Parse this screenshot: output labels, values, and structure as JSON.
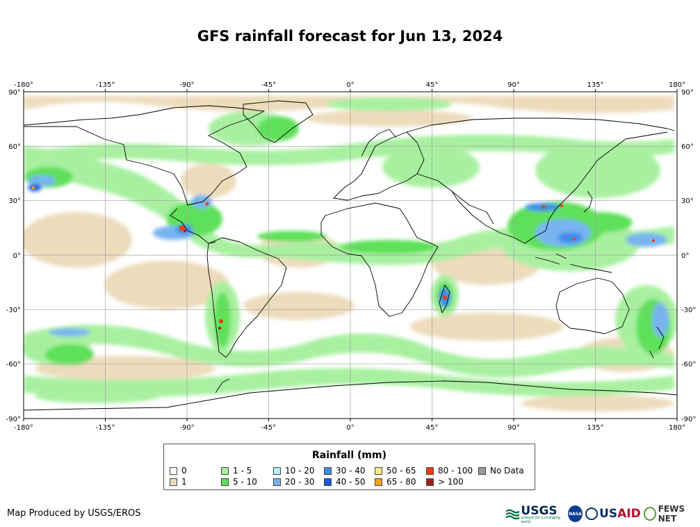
{
  "title": "GFS rainfall forecast for Jun 13, 2024",
  "map": {
    "lon_ticks": [
      "-180°",
      "-135°",
      "-90°",
      "-45°",
      "0°",
      "45°",
      "90°",
      "135°",
      "180°"
    ],
    "lat_ticks": [
      "90°",
      "60°",
      "30°",
      "0°",
      "-30°",
      "-60°",
      "-90°"
    ],
    "ocean_color": "#ffffff",
    "land_border_color": "#000000",
    "grid_color": "#a0a0a0"
  },
  "legend": {
    "title": "Rainfall (mm)",
    "items": [
      {
        "label": "0",
        "color": "#ffffff"
      },
      {
        "label": "1",
        "color": "#ecdcbc"
      },
      {
        "label": "1 - 5",
        "color": "#a8f0a0"
      },
      {
        "label": "5 - 10",
        "color": "#5ee05a"
      },
      {
        "label": "10 - 20",
        "color": "#b4f0f8"
      },
      {
        "label": "20 - 30",
        "color": "#78b4f0"
      },
      {
        "label": "30 - 40",
        "color": "#3c8ce8"
      },
      {
        "label": "40 - 50",
        "color": "#1e5ad8"
      },
      {
        "label": "50 - 65",
        "color": "#fae68c"
      },
      {
        "label": "65 - 80",
        "color": "#f8a01e"
      },
      {
        "label": "80 - 100",
        "color": "#f03c14"
      },
      {
        "label": "> 100",
        "color": "#a01e1e"
      },
      {
        "label": "No Data",
        "color": "#999999"
      }
    ]
  },
  "footer": {
    "credit": "Map Produced by USGS/EROS",
    "logos": {
      "usgs": "USGS",
      "usgs_tagline": "science for a changing world",
      "nasa": "NASA",
      "usaid_us": "US",
      "usaid_aid": "AID",
      "fews": "FEWS NET"
    }
  }
}
